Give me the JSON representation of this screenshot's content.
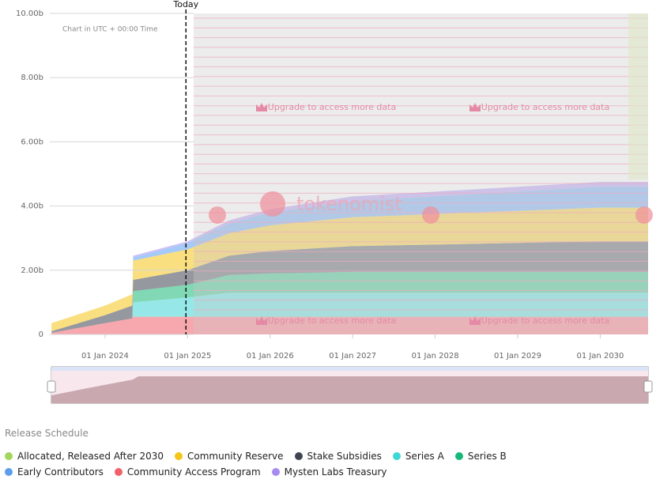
{
  "chart_data": {
    "type": "stacked_area",
    "annotations": [
      {
        "text": "Today",
        "x": 2024.98
      },
      {
        "text": "Chart in UTC + 00:00 Time"
      },
      {
        "text": "Upgrade to access more data"
      },
      {
        "text": "Upgrade to access more data"
      },
      {
        "text": "Upgrade to access more data"
      },
      {
        "text": "Upgrade to access more data"
      }
    ],
    "watermark": "tokenomist",
    "legend_title": "Release Schedule",
    "x": [
      2023.35,
      2024.0,
      2024.33,
      2024.34,
      2025.0,
      2025.5,
      2026.0,
      2027.0,
      2028.0,
      2029.0,
      2030.0,
      2030.58
    ],
    "xlim": [
      2023.33,
      2030.58
    ],
    "xticks": [
      {
        "value": 2024,
        "label": "01 Jan 2024"
      },
      {
        "value": 2025,
        "label": "01 Jan 2025"
      },
      {
        "value": 2026,
        "label": "01 Jan 2026"
      },
      {
        "value": 2027,
        "label": "01 Jan 2027"
      },
      {
        "value": 2028,
        "label": "01 Jan 2028"
      },
      {
        "value": 2029,
        "label": "01 Jan 2029"
      },
      {
        "value": 2030,
        "label": "01 Jan 2030"
      }
    ],
    "ylim": [
      0,
      10
    ],
    "yticks": [
      0,
      {
        "value": 2,
        "label": "2.00b"
      },
      {
        "value": 4,
        "label": "4.00b"
      },
      {
        "value": 6,
        "label": "6.00b"
      },
      {
        "value": 8,
        "label": "8.00b"
      },
      {
        "value": 10,
        "label": "10.00b"
      }
    ],
    "grid": true,
    "series": [
      {
        "name": "Allocated, Released After 2030",
        "color": "#a3d65c",
        "values": [
          0,
          0,
          0,
          0,
          0,
          0,
          0,
          0,
          0,
          0,
          0,
          0
        ]
      },
      {
        "name": "Community Reserve",
        "color": "#f5c518",
        "values": [
          0.25,
          0.3,
          0.35,
          0.6,
          0.65,
          0.7,
          0.8,
          0.9,
          0.95,
          1.0,
          1.05,
          1.05
        ]
      },
      {
        "name": "Stake Subsidies",
        "color": "#3f4450",
        "values": [
          0.05,
          0.25,
          0.4,
          0.35,
          0.45,
          0.6,
          0.7,
          0.8,
          0.85,
          0.9,
          0.95,
          0.95
        ]
      },
      {
        "name": "Series A",
        "color": "#3fd6d6",
        "values": [
          0,
          0,
          0,
          0.45,
          0.6,
          0.75,
          0.75,
          0.75,
          0.75,
          0.75,
          0.75,
          0.75
        ]
      },
      {
        "name": "Series B",
        "color": "#17b877",
        "values": [
          0,
          0,
          0,
          0.35,
          0.4,
          0.55,
          0.6,
          0.65,
          0.65,
          0.65,
          0.65,
          0.65
        ]
      },
      {
        "name": "Early Contributors",
        "color": "#5b9ef0",
        "values": [
          0,
          0,
          0,
          0.1,
          0.2,
          0.3,
          0.4,
          0.5,
          0.55,
          0.6,
          0.65,
          0.65
        ]
      },
      {
        "name": "Community Access Program",
        "color": "#f0616b",
        "values": [
          0.05,
          0.35,
          0.5,
          0.55,
          0.55,
          0.55,
          0.55,
          0.55,
          0.55,
          0.55,
          0.55,
          0.55
        ]
      },
      {
        "name": "Mysten Labs Treasury",
        "color": "#a78bf0",
        "values": [
          0,
          0,
          0,
          0.05,
          0.05,
          0.1,
          0.1,
          0.15,
          0.15,
          0.15,
          0.15,
          0.15
        ]
      }
    ]
  }
}
